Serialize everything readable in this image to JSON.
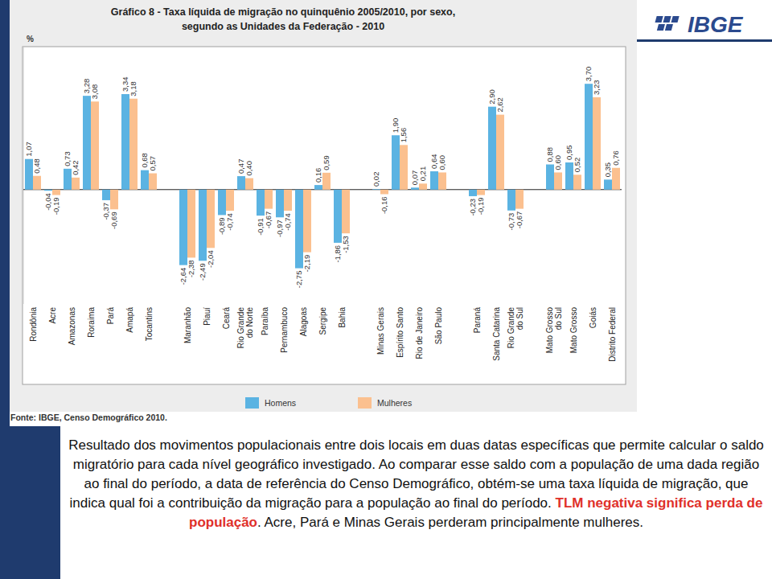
{
  "chart_data": {
    "type": "bar",
    "title": "Gráfico 8 - Taxa líquida de migração no quinquênio 2005/2010, por sexo,",
    "subtitle": "segundo as Unidades da Federação - 2010",
    "y_label": "%",
    "source": "Fonte: IBGE, Censo Demográfico 2010.",
    "categories": [
      "Rondônia",
      "Acre",
      "Amazonas",
      "Roraima",
      "Pará",
      "Amapá",
      "Tocantins",
      null,
      "Maranhão",
      "Piauí",
      "Ceará",
      "Rio Grande do Norte",
      "Paraíba",
      "Pernambuco",
      "Alagoas",
      "Sergipe",
      "Bahia",
      null,
      "Minas Gerais",
      "Espírito Santo",
      "Rio de Janeiro",
      "São Paulo",
      null,
      "Paraná",
      "Santa Catarina",
      "Rio Grande do Sul",
      null,
      "Mato Grosso do Sul",
      "Mato Grosso",
      "Goiás",
      "Distrito Federal"
    ],
    "series": [
      {
        "name": "Homens",
        "color": "#5bb3e2",
        "values": [
          1.07,
          -0.04,
          0.73,
          3.28,
          -0.37,
          3.34,
          0.68,
          null,
          -2.64,
          -2.49,
          -0.89,
          0.47,
          -0.91,
          -0.97,
          -2.75,
          0.16,
          -1.86,
          null,
          0.02,
          1.9,
          0.07,
          0.64,
          null,
          -0.23,
          2.9,
          -0.73,
          null,
          0.88,
          0.95,
          3.7,
          0.35
        ],
        "value_labels": [
          "1,07",
          "-0,04",
          "0,73",
          "3,28",
          "-0,37",
          "3,34",
          "0,68",
          null,
          "-2,64",
          "-2,49",
          "-0,89",
          "0,47",
          "-0,91",
          "-0,97",
          "-2,75",
          "0,16",
          "-1,86",
          null,
          "0,02",
          "1,90",
          "0,07",
          "0,64",
          null,
          "-0,23",
          "2,90",
          "-0,73",
          null,
          "0,88",
          "0,95",
          "3,70",
          "0,35"
        ]
      },
      {
        "name": "Mulheres",
        "color": "#fbc08f",
        "values": [
          0.48,
          -0.19,
          0.42,
          3.08,
          -0.69,
          3.18,
          0.57,
          null,
          -2.38,
          -2.04,
          -0.74,
          0.4,
          -0.67,
          -0.74,
          -2.19,
          0.59,
          -1.53,
          null,
          -0.16,
          1.56,
          0.21,
          0.6,
          null,
          -0.19,
          2.62,
          -0.67,
          null,
          0.6,
          0.52,
          3.23,
          0.76
        ],
        "value_labels": [
          "0,48",
          "-0,19",
          "0,42",
          "3,08",
          "-0,69",
          "3,18",
          "0,57",
          null,
          "-2,38",
          "-2,04",
          "-0,74",
          "0,40",
          "-0,67",
          "-0,74",
          "-2,19",
          "0,59",
          "-1,53",
          null,
          "-0,16",
          "1,56",
          "0,21",
          "0,60",
          null,
          "-0,19",
          "2,62",
          "-0,67",
          null,
          "0,60",
          "0,52",
          "3,23",
          "0,76"
        ]
      }
    ],
    "ylim": [
      -4,
      5
    ],
    "yticks": [
      0
    ],
    "grid": false,
    "tick_labels": "x",
    "data_labels": true,
    "legend": "bottom"
  },
  "logo": "IBGE",
  "caption": {
    "before": "Resultado dos movimentos populacionais entre dois locais em duas datas específicas que permite calcular o saldo migratório para cada nível geográfico investigado. Ao comparar esse saldo com a população de uma dada região ao final do período, a data de referência do Censo Demográfico, obtém-se uma taxa líquida de migração, que indica qual foi a contribuição da migração para a população ao final do período. ",
    "highlight": "TLM negativa significa  perda de população",
    "after": ". Acre, Pará e Minas Gerais perderam principalmente mulheres."
  }
}
